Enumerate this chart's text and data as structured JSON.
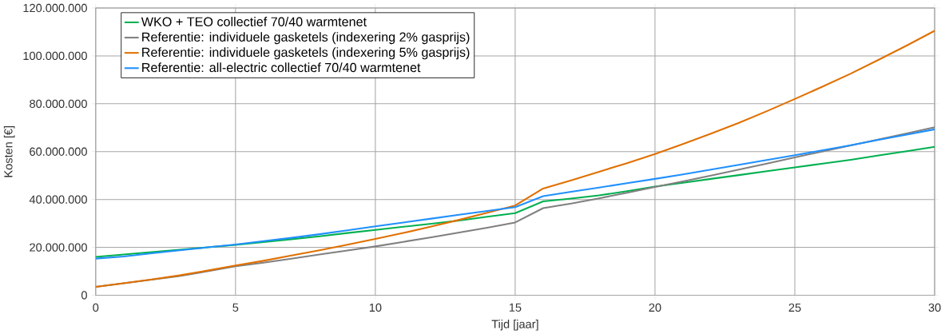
{
  "chart_data": {
    "type": "line",
    "xlabel": "Tijd [jaar]",
    "ylabel": "Kosten [€]",
    "x": [
      0,
      1,
      2,
      3,
      4,
      5,
      6,
      7,
      8,
      9,
      10,
      11,
      12,
      13,
      14,
      15,
      16,
      17,
      18,
      19,
      20,
      21,
      22,
      23,
      24,
      25,
      26,
      27,
      28,
      29,
      30
    ],
    "series": [
      {
        "name": "WKO + TEO collectief 70/40 warmtenet",
        "color": "#00b050",
        "values": [
          16000000,
          17000000,
          18000000,
          19000000,
          20000000,
          21000000,
          22200000,
          23400000,
          24600000,
          26000000,
          27300000,
          28600000,
          29900000,
          31200000,
          32800000,
          34300000,
          39200000,
          40400000,
          41700000,
          43500000,
          45400000,
          47000000,
          48600000,
          50200000,
          51800000,
          53400000,
          55000000,
          56600000,
          58400000,
          60200000,
          62000000
        ]
      },
      {
        "name": "Referentie: individuele gasketels (indexering 2% gasprijs)",
        "color": "#808080",
        "values": [
          3500000,
          5000000,
          6500000,
          8000000,
          10000000,
          12100000,
          13600000,
          15300000,
          17000000,
          18700000,
          20400000,
          22300000,
          24200000,
          26200000,
          28200000,
          30400000,
          36400000,
          38300000,
          40500000,
          42800000,
          45200000,
          47600000,
          50000000,
          52500000,
          55000000,
          57600000,
          60100000,
          62600000,
          65100000,
          67600000,
          70200000
        ]
      },
      {
        "name": "Referentie: individuele gasketels (indexering 5% gasprijs)",
        "color": "#e07000",
        "values": [
          3500000,
          5000000,
          6600000,
          8300000,
          10300000,
          12400000,
          14400000,
          16600000,
          18800000,
          21100000,
          23500000,
          26000000,
          28700000,
          31500000,
          34500000,
          37500000,
          44600000,
          48000000,
          51600000,
          55200000,
          59000000,
          63200000,
          67500000,
          72000000,
          76900000,
          82000000,
          87200000,
          92600000,
          98400000,
          104300000,
          110500000
        ]
      },
      {
        "name": "Referentie: all-electric collectief 70/40 warmtenet",
        "color": "#2090ff",
        "values": [
          15300000,
          16200000,
          17500000,
          18800000,
          20000000,
          21200000,
          22600000,
          24000000,
          25500000,
          27100000,
          28800000,
          30400000,
          32000000,
          33600000,
          35200000,
          36800000,
          41400000,
          43200000,
          45000000,
          46800000,
          48600000,
          50500000,
          52500000,
          54500000,
          56500000,
          58500000,
          60600000,
          62700000,
          64900000,
          67100000,
          69300000
        ]
      }
    ],
    "xlim": [
      0,
      30
    ],
    "xticks": [
      0,
      5,
      10,
      15,
      20,
      25,
      30
    ],
    "ylim": [
      0,
      120000000
    ],
    "yticks": [
      0,
      {
        "value": 20000000,
        "label": "20.000.000"
      },
      {
        "value": 40000000,
        "label": "40.000.000"
      },
      {
        "value": 60000000,
        "label": "60.000.000"
      },
      {
        "value": 80000000,
        "label": "80.000.000"
      },
      {
        "value": 100000000,
        "label": "100.000.000"
      },
      {
        "value": 120000000,
        "label": "120.000.000"
      }
    ],
    "grid": true,
    "legend": "top left",
    "marker": "none",
    "line_style": "solid"
  }
}
